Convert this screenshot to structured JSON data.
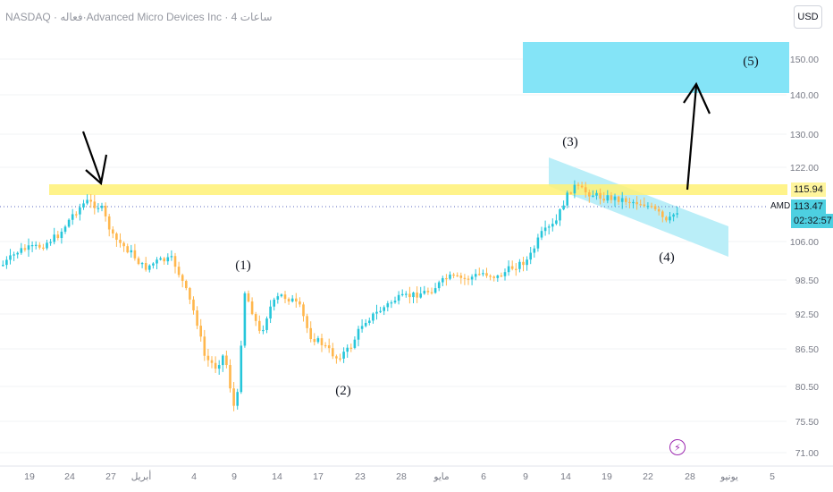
{
  "header": {
    "title": "NASDAQ · فعاله·Advanced Micro Devices Inc · 4 ساعات"
  },
  "currency_button": "USD",
  "chart_data": {
    "type": "candlestick",
    "symbol_tag": "AMD",
    "y_ticks": [
      "150.00",
      "140.00",
      "130.00",
      "122.00",
      "106.00",
      "98.50",
      "92.50",
      "86.50",
      "80.50",
      "75.50",
      "71.00"
    ],
    "x_ticks": [
      "19",
      "24",
      "27",
      "أبريل",
      "4",
      "9",
      "14",
      "17",
      "23",
      "28",
      "مايو",
      "6",
      "9",
      "14",
      "19",
      "22",
      "28",
      "يونيو",
      "5"
    ],
    "resistance_level": "115.94",
    "current_price": "113.47",
    "countdown": "02:32:57",
    "wave_labels": [
      "(1)",
      "(2)",
      "(3)",
      "(4)",
      "(5)"
    ],
    "colors": {
      "up": "#26c6da",
      "down": "#ffb74d",
      "resistance_band": "#fff176",
      "target_zone": "#84e4f7",
      "channel": "#b3ecf7",
      "annotation": "#000000"
    }
  }
}
